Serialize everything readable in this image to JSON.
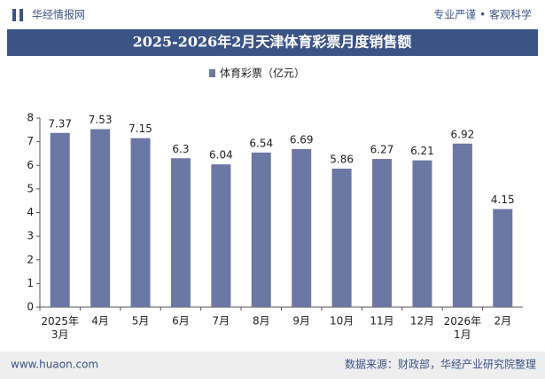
{
  "header": {
    "brand": "华经情报网",
    "slogan": "专业严谨 • 客观科学"
  },
  "chart_data": {
    "type": "bar",
    "title": "2025-2026年2月天津体育彩票月度销售额",
    "categories": [
      "2025年\n3月",
      "4月",
      "5月",
      "6月",
      "7月",
      "8月",
      "9月",
      "10月",
      "11月",
      "12月",
      "2026年\n1月",
      "2月"
    ],
    "series": [
      {
        "name": "体育彩票（亿元）",
        "color": "#6b78a3",
        "values": [
          7.37,
          7.53,
          7.15,
          6.3,
          6.04,
          6.54,
          6.69,
          5.86,
          6.27,
          6.21,
          6.92,
          4.15
        ]
      }
    ],
    "ylim": [
      0,
      8
    ],
    "yticks": [
      0,
      1,
      2,
      3,
      4,
      5,
      6,
      7,
      8
    ],
    "grid": false
  },
  "footer": {
    "website": "www.huaon.com",
    "source": "数据来源：财政部，华经产业研究院整理"
  }
}
